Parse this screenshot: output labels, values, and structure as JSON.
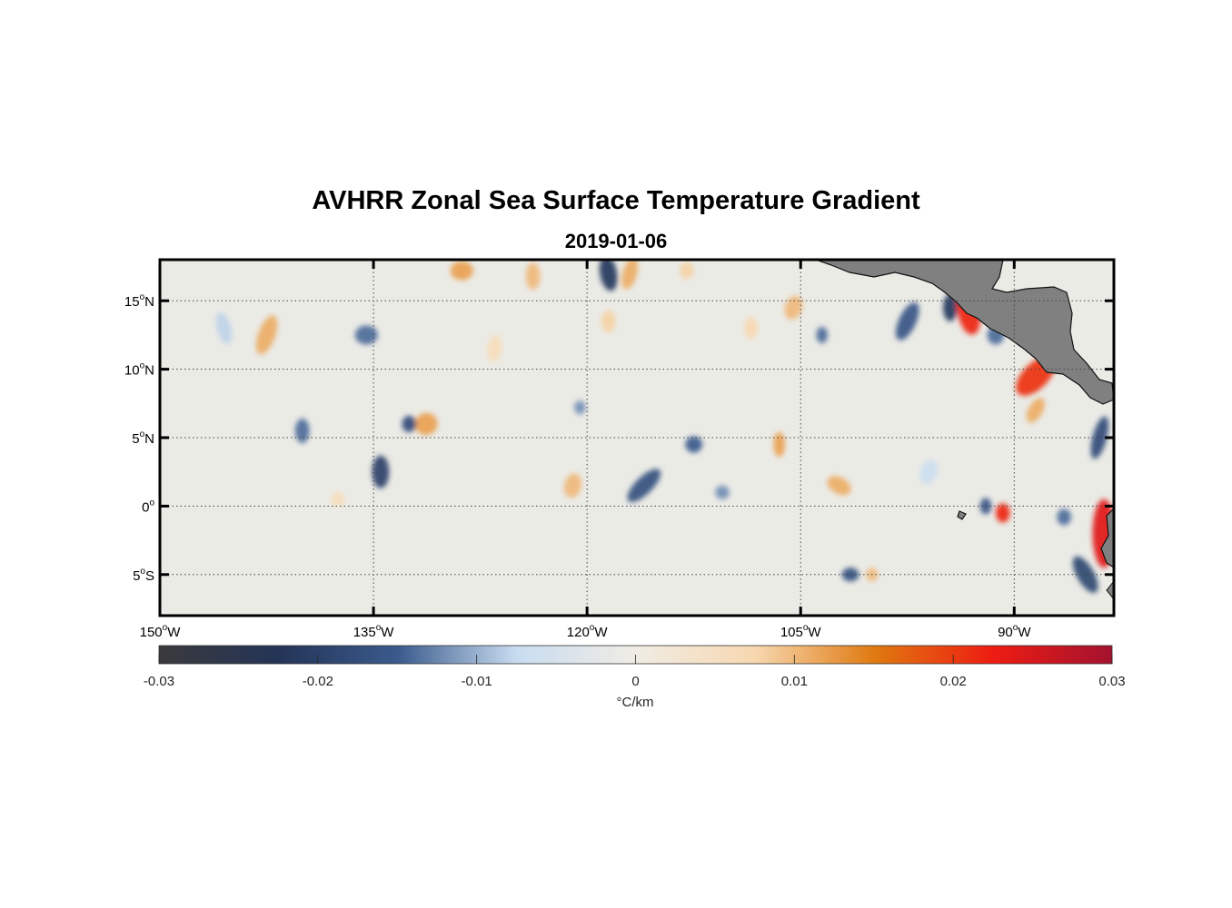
{
  "title": "AVHRR Zonal Sea Surface Temperature Gradient",
  "subtitle": "2019-01-06",
  "map": {
    "lon_range": [
      -150,
      -83
    ],
    "lat_range": [
      -8,
      18
    ],
    "grid": "dotted",
    "lon_ticks": [
      {
        "value": -150,
        "num": "150",
        "sup": "o",
        "hemi": "W"
      },
      {
        "value": -135,
        "num": "135",
        "sup": "o",
        "hemi": "W"
      },
      {
        "value": -120,
        "num": "120",
        "sup": "o",
        "hemi": "W"
      },
      {
        "value": -105,
        "num": "105",
        "sup": "o",
        "hemi": "W"
      },
      {
        "value": -90,
        "num": "90",
        "sup": "o",
        "hemi": "W"
      }
    ],
    "lat_ticks": [
      {
        "value": 15,
        "num": "15",
        "sup": "o",
        "hemi": "N"
      },
      {
        "value": 10,
        "num": "10",
        "sup": "o",
        "hemi": "N"
      },
      {
        "value": 5,
        "num": "5",
        "sup": "o",
        "hemi": "N"
      },
      {
        "value": 0,
        "num": "0",
        "sup": "o",
        "hemi": ""
      },
      {
        "value": -5,
        "num": "5",
        "sup": "o",
        "hemi": "S"
      }
    ],
    "land_color": "#808080",
    "background_color": "#ebebe6"
  },
  "colorbar": {
    "min": -0.03,
    "max": 0.03,
    "ticks": [
      "-0.03",
      "-0.02",
      "-0.01",
      "0",
      "0.01",
      "0.02",
      "0.03"
    ],
    "unit_label": "°C/km",
    "stops": [
      "#3a3a3c",
      "#243457",
      "#3a5a8c",
      "#c8dcf0",
      "#f0ece4",
      "#f7d8b0",
      "#e07a10",
      "#ee1c12",
      "#a3122f"
    ]
  },
  "features": [
    {
      "lon": -142.5,
      "lat": 12.5,
      "rx": 0.6,
      "ry": 1.5,
      "v": 0.011,
      "rot": 20
    },
    {
      "lon": -135.5,
      "lat": 12.5,
      "rx": 0.8,
      "ry": 0.7,
      "v": -0.014,
      "rot": 0
    },
    {
      "lon": -131.3,
      "lat": 6.0,
      "rx": 0.8,
      "ry": 0.8,
      "v": 0.012,
      "rot": -20
    },
    {
      "lon": -132.5,
      "lat": 6.0,
      "rx": 0.5,
      "ry": 0.6,
      "v": -0.018,
      "rot": 0
    },
    {
      "lon": -134.5,
      "lat": 2.5,
      "rx": 0.6,
      "ry": 1.2,
      "v": -0.02,
      "rot": 0
    },
    {
      "lon": -140.0,
      "lat": 5.5,
      "rx": 0.5,
      "ry": 0.9,
      "v": -0.014,
      "rot": 0
    },
    {
      "lon": -128.8,
      "lat": 17.2,
      "rx": 0.8,
      "ry": 0.7,
      "v": 0.012,
      "rot": 0
    },
    {
      "lon": -123.8,
      "lat": 16.8,
      "rx": 0.5,
      "ry": 1.0,
      "v": 0.01,
      "rot": 0
    },
    {
      "lon": -118.5,
      "lat": 17.0,
      "rx": 0.6,
      "ry": 1.3,
      "v": -0.022,
      "rot": -10
    },
    {
      "lon": -117.0,
      "lat": 17.0,
      "rx": 0.5,
      "ry": 1.2,
      "v": 0.011,
      "rot": 15
    },
    {
      "lon": -113.0,
      "lat": 17.2,
      "rx": 0.5,
      "ry": 0.6,
      "v": 0.008,
      "rot": 0
    },
    {
      "lon": -120.5,
      "lat": 7.2,
      "rx": 0.4,
      "ry": 0.5,
      "v": -0.012,
      "rot": 0
    },
    {
      "lon": -116.0,
      "lat": 1.5,
      "rx": 0.6,
      "ry": 1.6,
      "v": -0.017,
      "rot": 45
    },
    {
      "lon": -112.5,
      "lat": 4.5,
      "rx": 0.6,
      "ry": 0.6,
      "v": -0.015,
      "rot": 0
    },
    {
      "lon": -121.0,
      "lat": 1.5,
      "rx": 0.6,
      "ry": 0.9,
      "v": 0.01,
      "rot": 15
    },
    {
      "lon": -118.5,
      "lat": 13.5,
      "rx": 0.5,
      "ry": 0.8,
      "v": 0.008,
      "rot": 0
    },
    {
      "lon": -106.5,
      "lat": 4.5,
      "rx": 0.4,
      "ry": 0.9,
      "v": 0.012,
      "rot": 0
    },
    {
      "lon": -105.5,
      "lat": 14.5,
      "rx": 0.6,
      "ry": 0.9,
      "v": 0.01,
      "rot": 20
    },
    {
      "lon": -102.3,
      "lat": 1.5,
      "rx": 0.9,
      "ry": 0.6,
      "v": 0.011,
      "rot": 30
    },
    {
      "lon": -97.5,
      "lat": 13.5,
      "rx": 0.6,
      "ry": 1.5,
      "v": -0.016,
      "rot": 25
    },
    {
      "lon": -94.5,
      "lat": 14.5,
      "rx": 0.5,
      "ry": 1.0,
      "v": -0.022,
      "rot": 0
    },
    {
      "lon": -93.2,
      "lat": 14.3,
      "rx": 0.8,
      "ry": 1.8,
      "v": 0.022,
      "rot": -10
    },
    {
      "lon": -91.3,
      "lat": 12.5,
      "rx": 0.6,
      "ry": 0.7,
      "v": -0.014,
      "rot": 0
    },
    {
      "lon": -88.5,
      "lat": 9.5,
      "rx": 0.9,
      "ry": 1.8,
      "v": 0.021,
      "rot": 45
    },
    {
      "lon": -88.5,
      "lat": 7.0,
      "rx": 0.5,
      "ry": 1.0,
      "v": 0.011,
      "rot": 30
    },
    {
      "lon": -90.8,
      "lat": -0.5,
      "rx": 0.5,
      "ry": 0.7,
      "v": 0.022,
      "rot": 0
    },
    {
      "lon": -92.0,
      "lat": 0.0,
      "rx": 0.4,
      "ry": 0.6,
      "v": -0.016,
      "rot": 0
    },
    {
      "lon": -84.0,
      "lat": 5.0,
      "rx": 0.5,
      "ry": 1.6,
      "v": -0.018,
      "rot": 15
    },
    {
      "lon": -83.7,
      "lat": -2.0,
      "rx": 0.8,
      "ry": 2.5,
      "v": 0.024,
      "rot": 0
    },
    {
      "lon": -85.0,
      "lat": -5.0,
      "rx": 0.6,
      "ry": 1.5,
      "v": -0.019,
      "rot": -30
    },
    {
      "lon": -86.5,
      "lat": -0.8,
      "rx": 0.5,
      "ry": 0.6,
      "v": -0.014,
      "rot": 0
    },
    {
      "lon": -101.5,
      "lat": -5.0,
      "rx": 0.6,
      "ry": 0.5,
      "v": -0.017,
      "rot": 0
    },
    {
      "lon": -100.0,
      "lat": -5.0,
      "rx": 0.4,
      "ry": 0.5,
      "v": 0.01,
      "rot": 0
    },
    {
      "lon": -103.5,
      "lat": 12.5,
      "rx": 0.4,
      "ry": 0.6,
      "v": -0.014,
      "rot": 0
    },
    {
      "lon": -110.5,
      "lat": 1.0,
      "rx": 0.5,
      "ry": 0.5,
      "v": -0.012,
      "rot": 0
    },
    {
      "lon": -137.5,
      "lat": 0.5,
      "rx": 0.5,
      "ry": 0.5,
      "v": 0.006,
      "rot": 0
    },
    {
      "lon": -145.5,
      "lat": 13.0,
      "rx": 0.5,
      "ry": 1.2,
      "v": -0.008,
      "rot": -15
    },
    {
      "lon": -126.5,
      "lat": 11.5,
      "rx": 0.5,
      "ry": 1.0,
      "v": 0.006,
      "rot": 10
    },
    {
      "lon": -108.5,
      "lat": 13.0,
      "rx": 0.5,
      "ry": 0.8,
      "v": 0.007,
      "rot": 0
    },
    {
      "lon": -96.0,
      "lat": 2.5,
      "rx": 0.6,
      "ry": 0.9,
      "v": -0.007,
      "rot": 20
    }
  ]
}
